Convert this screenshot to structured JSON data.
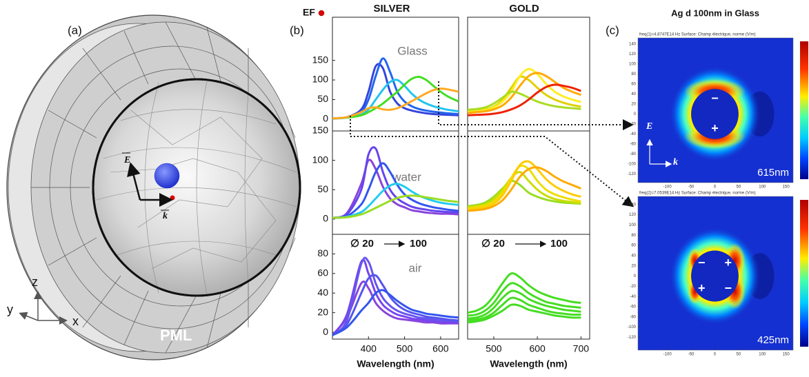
{
  "panel_a": {
    "label": "(a)",
    "pml": "PML",
    "axes": {
      "z": "z",
      "y": "y",
      "x": "x"
    },
    "field": "E",
    "wave": "k"
  },
  "panel_b": {
    "label": "(b)",
    "ef": "EF",
    "columns": [
      "SILVER",
      "GOLD"
    ],
    "media": [
      "Glass",
      "water",
      "air"
    ],
    "size_from": "∅ 20",
    "size_to": "100"
  },
  "chart_data": [
    {
      "type": "line",
      "xlim": [
        300,
        650
      ],
      "ylim": [
        -30,
        260
      ],
      "yticks": [
        0,
        50,
        100,
        150
      ],
      "x": [
        300,
        340,
        380,
        400,
        420,
        440,
        460,
        480,
        500,
        520,
        540,
        560,
        580,
        600,
        620,
        650
      ],
      "series": [
        {
          "color": "#3344dd",
          "values": [
            2,
            5,
            25,
            70,
            135,
            130,
            70,
            40,
            28,
            22,
            18,
            15,
            13,
            12,
            11,
            10
          ]
        },
        {
          "color": "#2266ee",
          "values": [
            2,
            5,
            20,
            50,
            110,
            155,
            120,
            70,
            45,
            33,
            26,
            22,
            19,
            17,
            15,
            13
          ]
        },
        {
          "color": "#22c4ee",
          "values": [
            2,
            4,
            12,
            25,
            50,
            75,
            95,
            100,
            85,
            65,
            50,
            40,
            33,
            28,
            24,
            20
          ]
        },
        {
          "color": "#44dd22",
          "values": [
            2,
            4,
            10,
            18,
            28,
            40,
            55,
            70,
            88,
            103,
            108,
            100,
            85,
            70,
            58,
            45
          ]
        },
        {
          "color": "#ffaa22",
          "values": [
            2,
            5,
            18,
            28,
            30,
            25,
            24,
            28,
            36,
            46,
            56,
            66,
            74,
            78,
            76,
            70
          ]
        }
      ]
    },
    {
      "type": "line",
      "xlim": [
        440,
        720
      ],
      "ylim": [
        -30,
        260
      ],
      "x": [
        440,
        460,
        480,
        500,
        520,
        540,
        560,
        580,
        600,
        620,
        640,
        660,
        680,
        700
      ],
      "series": [
        {
          "color": "#e0d000",
          "values": [
            20,
            22,
            25,
            32,
            50,
            80,
            108,
            100,
            80,
            62,
            50,
            42,
            36,
            32
          ]
        },
        {
          "color": "#ffee22",
          "values": [
            18,
            20,
            23,
            30,
            45,
            70,
            110,
            128,
            115,
            90,
            70,
            58,
            50,
            44
          ]
        },
        {
          "color": "#ffaa00",
          "values": [
            16,
            18,
            20,
            25,
            35,
            55,
            85,
            110,
            118,
            110,
            95,
            80,
            70,
            62
          ]
        },
        {
          "color": "#aadd22",
          "values": [
            24,
            26,
            30,
            40,
            55,
            70,
            65,
            55,
            45,
            38,
            33,
            30,
            28,
            26
          ]
        },
        {
          "color": "#ee2200",
          "values": [
            10,
            11,
            12,
            14,
            18,
            25,
            35,
            50,
            68,
            82,
            88,
            85,
            80,
            72
          ]
        }
      ]
    },
    {
      "type": "line",
      "xlim": [
        300,
        650
      ],
      "ylim": [
        -26,
        150
      ],
      "yticks": [
        0,
        50,
        100,
        150
      ],
      "x": [
        300,
        340,
        380,
        400,
        420,
        440,
        460,
        480,
        500,
        520,
        540,
        560,
        580,
        600,
        620,
        650
      ],
      "series": [
        {
          "color": "#8844dd",
          "values": [
            2,
            10,
            60,
            100,
            85,
            55,
            35,
            25,
            20,
            15,
            13,
            11,
            10,
            9,
            9,
            8
          ]
        },
        {
          "color": "#6644ee",
          "values": [
            2,
            8,
            50,
            110,
            120,
            80,
            50,
            35,
            27,
            21,
            18,
            16,
            14,
            13,
            12,
            11
          ]
        },
        {
          "color": "#3355ee",
          "values": [
            2,
            5,
            25,
            50,
            80,
            95,
            80,
            58,
            42,
            33,
            27,
            23,
            20,
            18,
            16,
            14
          ]
        },
        {
          "color": "#22ccee",
          "values": [
            2,
            4,
            12,
            22,
            35,
            48,
            57,
            60,
            55,
            47,
            40,
            35,
            31,
            28,
            26,
            24
          ]
        },
        {
          "color": "#99dd22",
          "values": [
            2,
            3,
            8,
            13,
            19,
            25,
            31,
            36,
            39,
            40,
            39,
            37,
            35,
            33,
            31,
            29
          ]
        }
      ]
    },
    {
      "type": "line",
      "xlim": [
        440,
        720
      ],
      "ylim": [
        -26,
        150
      ],
      "x": [
        440,
        460,
        480,
        500,
        520,
        540,
        560,
        580,
        600,
        620,
        640,
        660,
        680,
        700
      ],
      "series": [
        {
          "color": "#99dd22",
          "values": [
            22,
            24,
            28,
            38,
            52,
            65,
            58,
            45,
            38,
            33,
            30,
            28,
            27,
            26
          ]
        },
        {
          "color": "#ccdd00",
          "values": [
            20,
            22,
            25,
            34,
            50,
            70,
            80,
            65,
            50,
            40,
            34,
            31,
            29,
            27
          ]
        },
        {
          "color": "#eedd00",
          "values": [
            18,
            20,
            23,
            30,
            45,
            70,
            90,
            85,
            65,
            50,
            42,
            37,
            33,
            30
          ]
        },
        {
          "color": "#ffcc00",
          "values": [
            16,
            18,
            20,
            26,
            40,
            65,
            92,
            98,
            85,
            68,
            56,
            48,
            42,
            38
          ]
        },
        {
          "color": "#ffaa00",
          "values": [
            14,
            15,
            17,
            22,
            32,
            50,
            72,
            85,
            88,
            82,
            72,
            64,
            58,
            52
          ]
        }
      ]
    },
    {
      "type": "line",
      "xlim": [
        300,
        650
      ],
      "ylim": [
        -7,
        100
      ],
      "yticks": [
        0,
        20,
        40,
        60,
        80
      ],
      "xticks": [
        400,
        500,
        600
      ],
      "xlabel": "Wavelength (nm)",
      "x": [
        300,
        340,
        380,
        400,
        420,
        440,
        460,
        480,
        500,
        520,
        540,
        560,
        580,
        600,
        620,
        650
      ],
      "series": [
        {
          "color": "#8844dd",
          "values": [
            -3,
            15,
            50,
            45,
            30,
            22,
            17,
            14,
            13,
            12,
            11,
            10,
            10,
            9,
            9,
            9
          ]
        },
        {
          "color": "#7744ee",
          "values": [
            -3,
            18,
            72,
            60,
            40,
            28,
            22,
            18,
            16,
            14,
            13,
            12,
            11,
            11,
            10,
            10
          ]
        },
        {
          "color": "#6655ee",
          "values": [
            -3,
            12,
            70,
            72,
            50,
            35,
            27,
            22,
            19,
            17,
            15,
            14,
            13,
            12,
            12,
            11
          ]
        },
        {
          "color": "#5555ee",
          "values": [
            -3,
            8,
            40,
            55,
            58,
            48,
            36,
            28,
            23,
            20,
            18,
            16,
            15,
            14,
            13,
            12
          ]
        },
        {
          "color": "#3355ee",
          "values": [
            -3,
            5,
            22,
            30,
            40,
            43,
            38,
            32,
            27,
            23,
            21,
            19,
            18,
            17,
            16,
            15
          ]
        }
      ]
    },
    {
      "type": "line",
      "xlim": [
        440,
        720
      ],
      "ylim": [
        -7,
        100
      ],
      "xticks": [
        500,
        600,
        700
      ],
      "xlabel": "Wavelength (nm)",
      "x": [
        440,
        460,
        480,
        500,
        520,
        540,
        560,
        580,
        600,
        620,
        640,
        660,
        680,
        700
      ],
      "series": [
        {
          "color": "#44dd22",
          "values": [
            20,
            22,
            27,
            37,
            50,
            60,
            56,
            48,
            42,
            38,
            35,
            33,
            31,
            30
          ]
        },
        {
          "color": "#44dd22",
          "values": [
            17,
            18,
            22,
            30,
            42,
            50,
            47,
            40,
            35,
            31,
            29,
            27,
            26,
            25
          ]
        },
        {
          "color": "#44dd22",
          "values": [
            14,
            15,
            18,
            25,
            35,
            42,
            40,
            34,
            30,
            27,
            25,
            23,
            22,
            21
          ]
        },
        {
          "color": "#44dd22",
          "values": [
            12,
            13,
            15,
            20,
            28,
            35,
            33,
            28,
            25,
            22,
            20,
            19,
            18,
            18
          ]
        },
        {
          "color": "#44dd22",
          "values": [
            10,
            11,
            13,
            17,
            22,
            28,
            27,
            23,
            21,
            19,
            17,
            16,
            15,
            15
          ]
        }
      ]
    }
  ],
  "panel_c": {
    "label": "(c)",
    "title": "Ag d 100nm in Glass",
    "minus": "−",
    "plus": "+",
    "field": "E",
    "wave": "k",
    "xlim": [
      -162,
      165
    ],
    "xticks": [
      -100,
      -50,
      0,
      50,
      100,
      150
    ],
    "yticks": [
      140,
      120,
      100,
      80,
      60,
      40,
      20,
      0,
      -20,
      -40,
      -60,
      -80,
      -100,
      -120
    ],
    "maps": [
      {
        "header": "freq(1)=4.8747E14 Hz   Surface: Champ électrique, norme (V/m)",
        "wavelength": "615nm",
        "ylim": [
          -137,
          152
        ]
      },
      {
        "header": "freq(2)=7.0539E14 Hz   Surface: Champ électrique, norme (V/m)",
        "wavelength": "425nm",
        "ylim": [
          -145,
          156
        ]
      }
    ]
  }
}
